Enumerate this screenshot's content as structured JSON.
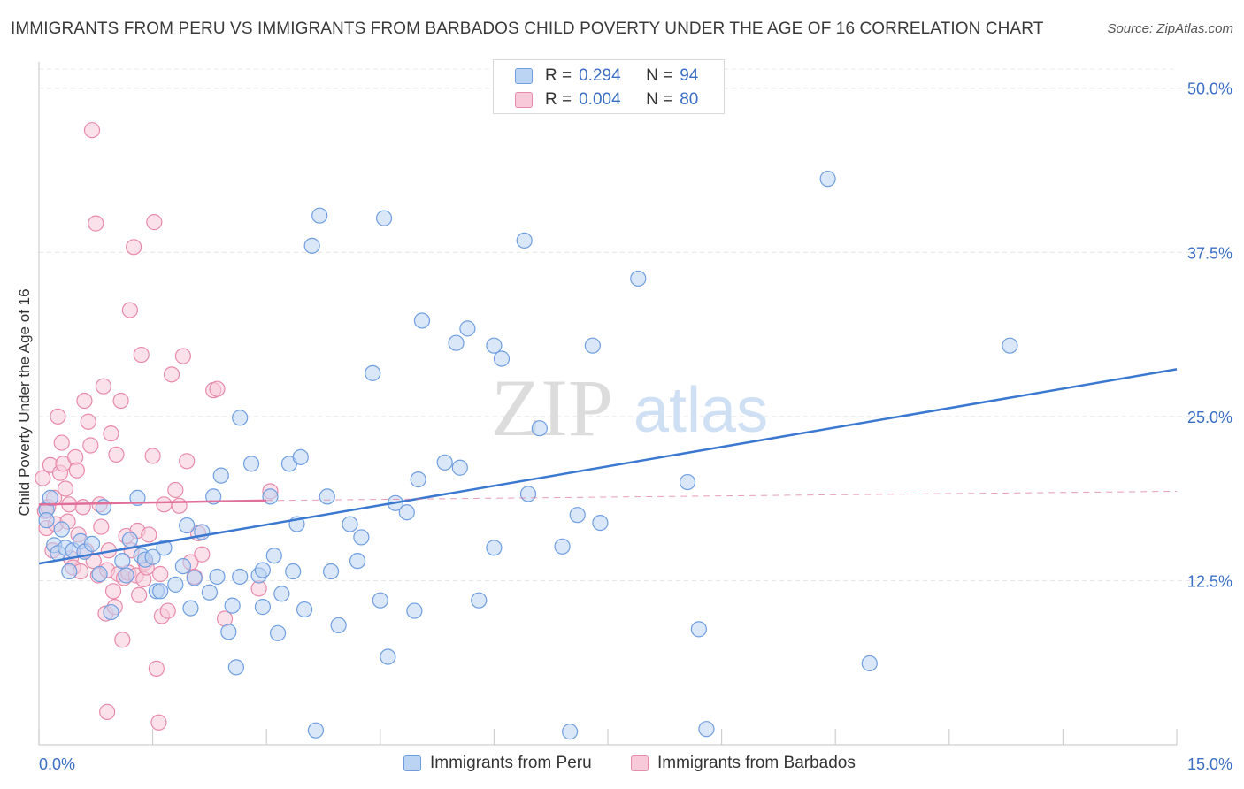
{
  "title": "IMMIGRANTS FROM PERU VS IMMIGRANTS FROM BARBADOS CHILD POVERTY UNDER THE AGE OF 16 CORRELATION CHART",
  "source": "Source: ZipAtlas.com",
  "watermark": {
    "zip": "ZIP",
    "atlas": "atlas"
  },
  "legend": {
    "rows": [
      {
        "r_label": "R =",
        "r_value": "0.294",
        "n_label": "N =",
        "n_value": "94",
        "color": "#6f9ee0",
        "fill": "#bcd4f3"
      },
      {
        "r_label": "R =",
        "r_value": "0.004",
        "n_label": "N =",
        "n_value": "80",
        "color": "#e88aa9",
        "fill": "#f8cad9"
      }
    ]
  },
  "colors": {
    "blue": "#3b78d0",
    "blue_fill": "#bcd4f3",
    "blue_stroke": "#6f9ee0",
    "pink": "#e0709a",
    "pink_fill": "#f8cad9",
    "pink_stroke": "#e88aa9",
    "axis_text": "#3b6fc4"
  },
  "chart_data": {
    "type": "scatter",
    "title": "IMMIGRANTS FROM PERU VS IMMIGRANTS FROM BARBADOS CHILD POVERTY UNDER THE AGE OF 16 CORRELATION CHART",
    "xlabel": "",
    "ylabel": "Child Poverty Under the Age of 16",
    "xlim": [
      0,
      15
    ],
    "ylim": [
      0,
      52
    ],
    "x_tick_labels": [
      "0.0%",
      "15.0%"
    ],
    "y_ticks": [
      12.5,
      25,
      37.5,
      50
    ],
    "y_tick_labels": [
      "12.5%",
      "25.0%",
      "37.5%",
      "50.0%"
    ],
    "grid": true,
    "legend_position": "top-center",
    "series": [
      {
        "name": "Immigrants from Peru",
        "trend": {
          "x": [
            0,
            15
          ],
          "y": [
            13.8,
            28.6
          ]
        },
        "points": [
          [
            0.1,
            17.9
          ],
          [
            0.15,
            18.8
          ],
          [
            0.2,
            15.2
          ],
          [
            0.25,
            14.6
          ],
          [
            0.3,
            16.4
          ],
          [
            0.35,
            15
          ],
          [
            0.4,
            13.2
          ],
          [
            0.45,
            14.8
          ],
          [
            0.55,
            15.5
          ],
          [
            0.6,
            14.7
          ],
          [
            0.7,
            15.3
          ],
          [
            0.8,
            13
          ],
          [
            0.85,
            18.1
          ],
          [
            0.95,
            10.1
          ],
          [
            1.1,
            14
          ],
          [
            1.15,
            12.9
          ],
          [
            1.2,
            15.6
          ],
          [
            1.3,
            18.8
          ],
          [
            1.35,
            14.4
          ],
          [
            1.4,
            14.1
          ],
          [
            1.5,
            14.3
          ],
          [
            1.55,
            11.7
          ],
          [
            1.6,
            11.7
          ],
          [
            1.65,
            15
          ],
          [
            1.8,
            12.2
          ],
          [
            1.9,
            13.6
          ],
          [
            1.95,
            16.7
          ],
          [
            2.0,
            10.4
          ],
          [
            2.05,
            12.7
          ],
          [
            2.15,
            16.2
          ],
          [
            2.25,
            11.6
          ],
          [
            2.3,
            18.9
          ],
          [
            2.35,
            12.8
          ],
          [
            2.4,
            20.5
          ],
          [
            2.5,
            8.6
          ],
          [
            2.55,
            10.6
          ],
          [
            2.6,
            5.9
          ],
          [
            2.65,
            12.8
          ],
          [
            2.65,
            24.9
          ],
          [
            2.8,
            21.4
          ],
          [
            2.9,
            12.9
          ],
          [
            2.95,
            13.3
          ],
          [
            2.95,
            10.5
          ],
          [
            3.05,
            18.9
          ],
          [
            3.1,
            14.4
          ],
          [
            3.15,
            8.5
          ],
          [
            3.2,
            11.5
          ],
          [
            3.3,
            21.4
          ],
          [
            3.35,
            13.2
          ],
          [
            3.4,
            16.8
          ],
          [
            3.45,
            21.9
          ],
          [
            3.5,
            10.3
          ],
          [
            3.6,
            38
          ],
          [
            3.65,
            1.1
          ],
          [
            3.7,
            40.3
          ],
          [
            3.8,
            18.9
          ],
          [
            3.85,
            13.2
          ],
          [
            3.95,
            9.1
          ],
          [
            4.1,
            16.8
          ],
          [
            4.2,
            14
          ],
          [
            4.25,
            15.8
          ],
          [
            4.4,
            28.3
          ],
          [
            4.5,
            11
          ],
          [
            4.55,
            40.1
          ],
          [
            4.6,
            6.7
          ],
          [
            4.7,
            18.4
          ],
          [
            4.85,
            17.7
          ],
          [
            4.95,
            10.2
          ],
          [
            5.0,
            20.2
          ],
          [
            5.05,
            32.3
          ],
          [
            5.35,
            21.5
          ],
          [
            5.5,
            30.6
          ],
          [
            5.55,
            21.1
          ],
          [
            5.65,
            31.7
          ],
          [
            5.8,
            11
          ],
          [
            6.0,
            30.4
          ],
          [
            6.0,
            15
          ],
          [
            6.1,
            29.4
          ],
          [
            6.4,
            38.4
          ],
          [
            6.45,
            19.1
          ],
          [
            6.6,
            24.1
          ],
          [
            6.9,
            15.1
          ],
          [
            7.0,
            1
          ],
          [
            7.1,
            17.5
          ],
          [
            7.3,
            30.4
          ],
          [
            7.4,
            16.9
          ],
          [
            7.9,
            35.5
          ],
          [
            8.55,
            20
          ],
          [
            8.7,
            8.8
          ],
          [
            8.8,
            1.2
          ],
          [
            10.4,
            43.1
          ],
          [
            10.95,
            6.2
          ],
          [
            12.8,
            30.4
          ],
          [
            0.1,
            17.1
          ]
        ]
      },
      {
        "name": "Immigrants from Barbados",
        "trend": {
          "x": [
            0,
            3
          ],
          "y": [
            18.3,
            18.6
          ]
        },
        "trend_dashed": {
          "x": [
            3,
            15
          ],
          "y": [
            18.6,
            19.3
          ]
        },
        "points": [
          [
            0.05,
            20.3
          ],
          [
            0.08,
            17.8
          ],
          [
            0.1,
            16.5
          ],
          [
            0.12,
            18.1
          ],
          [
            0.15,
            21.3
          ],
          [
            0.18,
            14.8
          ],
          [
            0.2,
            18.8
          ],
          [
            0.22,
            16.8
          ],
          [
            0.25,
            25
          ],
          [
            0.28,
            20.7
          ],
          [
            0.3,
            23
          ],
          [
            0.32,
            21.4
          ],
          [
            0.35,
            19.5
          ],
          [
            0.38,
            17
          ],
          [
            0.4,
            18.3
          ],
          [
            0.42,
            14.2
          ],
          [
            0.45,
            13.5
          ],
          [
            0.48,
            21.9
          ],
          [
            0.5,
            20.9
          ],
          [
            0.52,
            16
          ],
          [
            0.55,
            13.2
          ],
          [
            0.58,
            18.1
          ],
          [
            0.6,
            26.2
          ],
          [
            0.62,
            14.8
          ],
          [
            0.65,
            24.6
          ],
          [
            0.68,
            22.8
          ],
          [
            0.7,
            46.8
          ],
          [
            0.72,
            14
          ],
          [
            0.75,
            39.7
          ],
          [
            0.78,
            12.9
          ],
          [
            0.8,
            18.3
          ],
          [
            0.82,
            16.6
          ],
          [
            0.85,
            27.3
          ],
          [
            0.88,
            10
          ],
          [
            0.9,
            13.3
          ],
          [
            0.92,
            14.8
          ],
          [
            0.95,
            23.7
          ],
          [
            0.98,
            11.7
          ],
          [
            1.0,
            10.5
          ],
          [
            1.02,
            22.1
          ],
          [
            1.05,
            13
          ],
          [
            1.08,
            26.2
          ],
          [
            1.1,
            8
          ],
          [
            1.12,
            12.7
          ],
          [
            1.15,
            15.9
          ],
          [
            1.18,
            13.1
          ],
          [
            1.2,
            33.1
          ],
          [
            1.22,
            14.8
          ],
          [
            1.25,
            37.9
          ],
          [
            1.28,
            12.9
          ],
          [
            1.3,
            16.3
          ],
          [
            1.32,
            11.4
          ],
          [
            1.35,
            29.7
          ],
          [
            1.38,
            12.6
          ],
          [
            1.4,
            13.9
          ],
          [
            1.42,
            13.5
          ],
          [
            1.45,
            16
          ],
          [
            1.5,
            22
          ],
          [
            1.52,
            39.8
          ],
          [
            1.55,
            5.8
          ],
          [
            1.58,
            1.7
          ],
          [
            1.6,
            13
          ],
          [
            1.62,
            9.8
          ],
          [
            1.65,
            18.3
          ],
          [
            1.7,
            10.2
          ],
          [
            1.75,
            28.2
          ],
          [
            1.8,
            19.4
          ],
          [
            1.85,
            18.2
          ],
          [
            1.9,
            29.6
          ],
          [
            1.95,
            21.6
          ],
          [
            2.0,
            13.9
          ],
          [
            2.05,
            12.8
          ],
          [
            2.1,
            16.1
          ],
          [
            2.15,
            14.5
          ],
          [
            2.3,
            27
          ],
          [
            2.35,
            27.1
          ],
          [
            2.45,
            9.6
          ],
          [
            2.9,
            11.9
          ],
          [
            3.05,
            19.3
          ],
          [
            0.9,
            2.5
          ]
        ]
      }
    ]
  }
}
